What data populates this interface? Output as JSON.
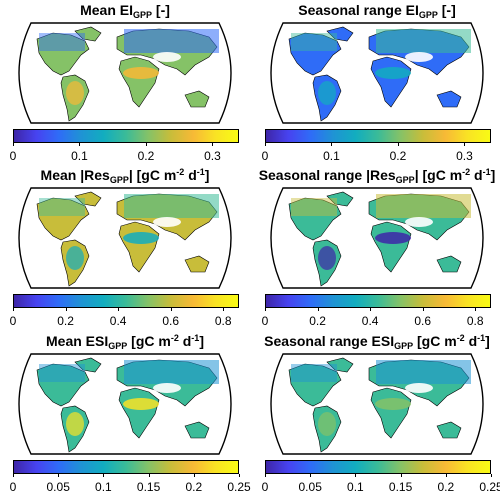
{
  "colormap": [
    "#3e26a8",
    "#4743f0",
    "#2f6cf7",
    "#1f93d4",
    "#12adbf",
    "#3bbb98",
    "#85c267",
    "#c8bd3a",
    "#f7b936",
    "#f9e324",
    "#f9fb15"
  ],
  "panels": [
    {
      "id": "mean-ei",
      "prefix": "Mean EI",
      "sub": "GPP",
      "suffix": " [-]",
      "units": false,
      "ticks": [
        "0",
        "0.1",
        "0.2",
        "0.3"
      ],
      "vmax": 0.34
    },
    {
      "id": "range-ei",
      "prefix": "Seasonal range EI",
      "sub": "GPP",
      "suffix": " [-]",
      "units": false,
      "ticks": [
        "0",
        "0.1",
        "0.2",
        "0.3"
      ],
      "vmax": 0.34
    },
    {
      "id": "mean-res",
      "prefix": "Mean |Res",
      "sub": "GPP",
      "suffix": "| [gC m",
      "units": true,
      "ticks": [
        "0",
        "0.2",
        "0.4",
        "0.6",
        "0.8"
      ],
      "vmax": 0.86
    },
    {
      "id": "range-res",
      "prefix": "Seasonal range |Res",
      "sub": "GPP",
      "suffix": "| [gC m",
      "units": true,
      "ticks": [
        "0",
        "0.2",
        "0.4",
        "0.6",
        "0.8"
      ],
      "vmax": 0.86
    },
    {
      "id": "mean-esi",
      "prefix": "Mean ESI",
      "sub": "GPP",
      "suffix": " [gC m",
      "units": true,
      "ticks": [
        "0",
        "0.05",
        "0.1",
        "0.15",
        "0.2",
        "0.25"
      ],
      "vmax": 0.25
    },
    {
      "id": "range-esi",
      "prefix": "Seasonal range ESI",
      "sub": "GPP",
      "suffix": " [gC m",
      "units": true,
      "ticks": [
        "0",
        "0.05",
        "0.1",
        "0.15",
        "0.2",
        "0.25"
      ],
      "vmax": 0.25
    }
  ],
  "units_tail": {
    "exp1": "-2",
    "mid": " d",
    "exp2": "-1",
    "end": "]"
  }
}
